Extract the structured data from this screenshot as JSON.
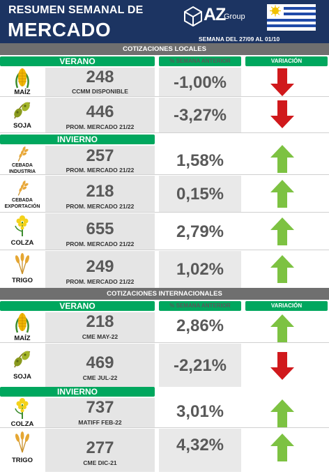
{
  "header": {
    "title_line1": "RESUMEN SEMANAL DE",
    "title_line2": "MERCADO",
    "logo_text": "AZ",
    "logo_group": "Group",
    "week_range": "SEMANA DEL 27/09 AL 01/10",
    "brand_color": "#1c3462"
  },
  "colors": {
    "green_header": "#00a75e",
    "arrow_up": "#7dc242",
    "arrow_down": "#d0191c",
    "section_bar": "#6f6f6f"
  },
  "local": {
    "section_title": "COTIZACIONES LOCALES",
    "col_pct": "% SEMANA ANTERIOR",
    "col_var": "VARIACIÓN",
    "verano_label": "VERANO",
    "invierno_label": "INVIERNO",
    "rows": [
      {
        "crop": "MAÍZ",
        "icon": "corn-icon",
        "price": "248",
        "sub": "CCMM DISPONIBLE",
        "pct": "-1,00%",
        "direction": "down"
      },
      {
        "crop": "SOJA",
        "icon": "soybean-icon",
        "price": "446",
        "sub": "PROM. MERCADO 21/22",
        "pct": "-3,27%",
        "direction": "down"
      },
      {
        "crop": "CEBADA INDUSTRIA",
        "crop1": "CEBADA",
        "crop2": "INDUSTRIA",
        "icon": "barley-icon",
        "price": "257",
        "sub": "PROM. MERCADO 21/22",
        "pct": "1,58%",
        "direction": "up"
      },
      {
        "crop": "CEBADA EXPORTACIÓN",
        "crop1": "CEBADA",
        "crop2": "EXPORTACIÓN",
        "icon": "barley-icon",
        "price": "218",
        "sub": "PROM. MERCADO 21/22",
        "pct": "0,15%",
        "direction": "up"
      },
      {
        "crop": "COLZA",
        "icon": "rapeseed-icon",
        "price": "655",
        "sub": "PROM. MERCADO 21/22",
        "pct": "2,79%",
        "direction": "up"
      },
      {
        "crop": "TRIGO",
        "icon": "wheat-icon",
        "price": "249",
        "sub": "PROM. MERCADO 21/22",
        "pct": "1,02%",
        "direction": "up"
      }
    ]
  },
  "international": {
    "section_title": "COTIZACIONES INTERNACIONALES",
    "col_pct": "% SEMANA ANTERIOR",
    "col_var": "VARIACIÓN",
    "verano_label": "VERANO",
    "invierno_label": "INVIERNO",
    "rows": [
      {
        "crop": "MAÍZ",
        "icon": "corn-icon",
        "price": "218",
        "sub": "CME MAY-22",
        "pct": "2,86%",
        "direction": "up"
      },
      {
        "crop": "SOJA",
        "icon": "soybean-icon",
        "price": "469",
        "sub": "CME JUL-22",
        "pct": "-2,21%",
        "direction": "down"
      },
      {
        "crop": "COLZA",
        "icon": "rapeseed-icon",
        "price": "737",
        "sub": "MATIFF FEB-22",
        "pct": "3,01%",
        "direction": "up"
      },
      {
        "crop": "TRIGO",
        "icon": "wheat-icon",
        "price": "277",
        "sub": "CME DIC-21",
        "pct": "4,32%",
        "direction": "up"
      }
    ]
  }
}
